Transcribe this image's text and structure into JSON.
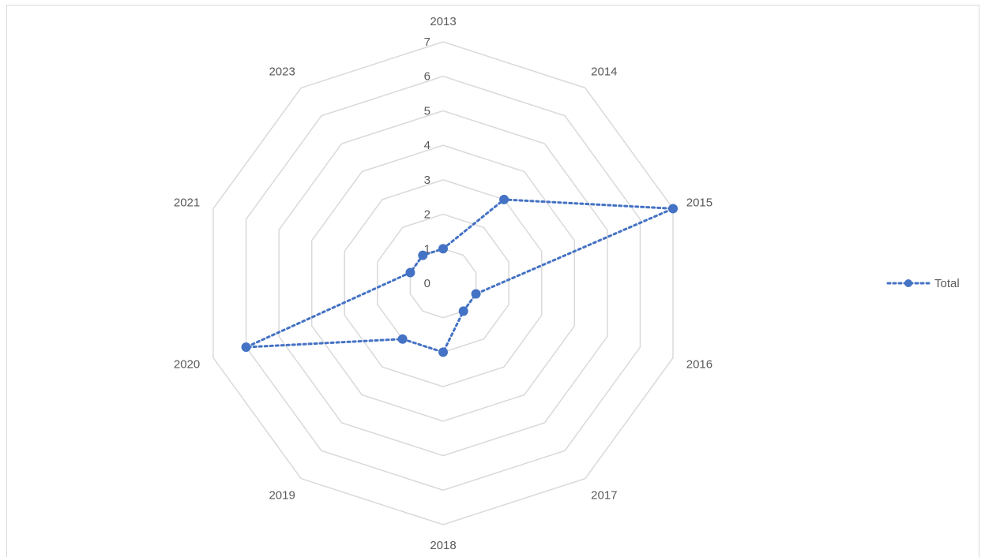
{
  "chart_data": {
    "type": "radar",
    "categories": [
      "2013",
      "2014",
      "2015",
      "2016",
      "2017",
      "2018",
      "2019",
      "2020",
      "2021",
      "2023"
    ],
    "series": [
      {
        "name": "Total",
        "values": [
          1,
          3,
          7,
          1,
          1,
          2,
          2,
          6,
          1,
          1
        ]
      }
    ],
    "rlim": [
      0,
      7
    ],
    "ticks": [
      "0",
      "1",
      "2",
      "3",
      "4",
      "5",
      "6",
      "7"
    ],
    "legend": "right",
    "grid": true,
    "colors": {
      "series": "#4472c4",
      "grid": "#d9d9d9",
      "text": "#595959"
    }
  }
}
